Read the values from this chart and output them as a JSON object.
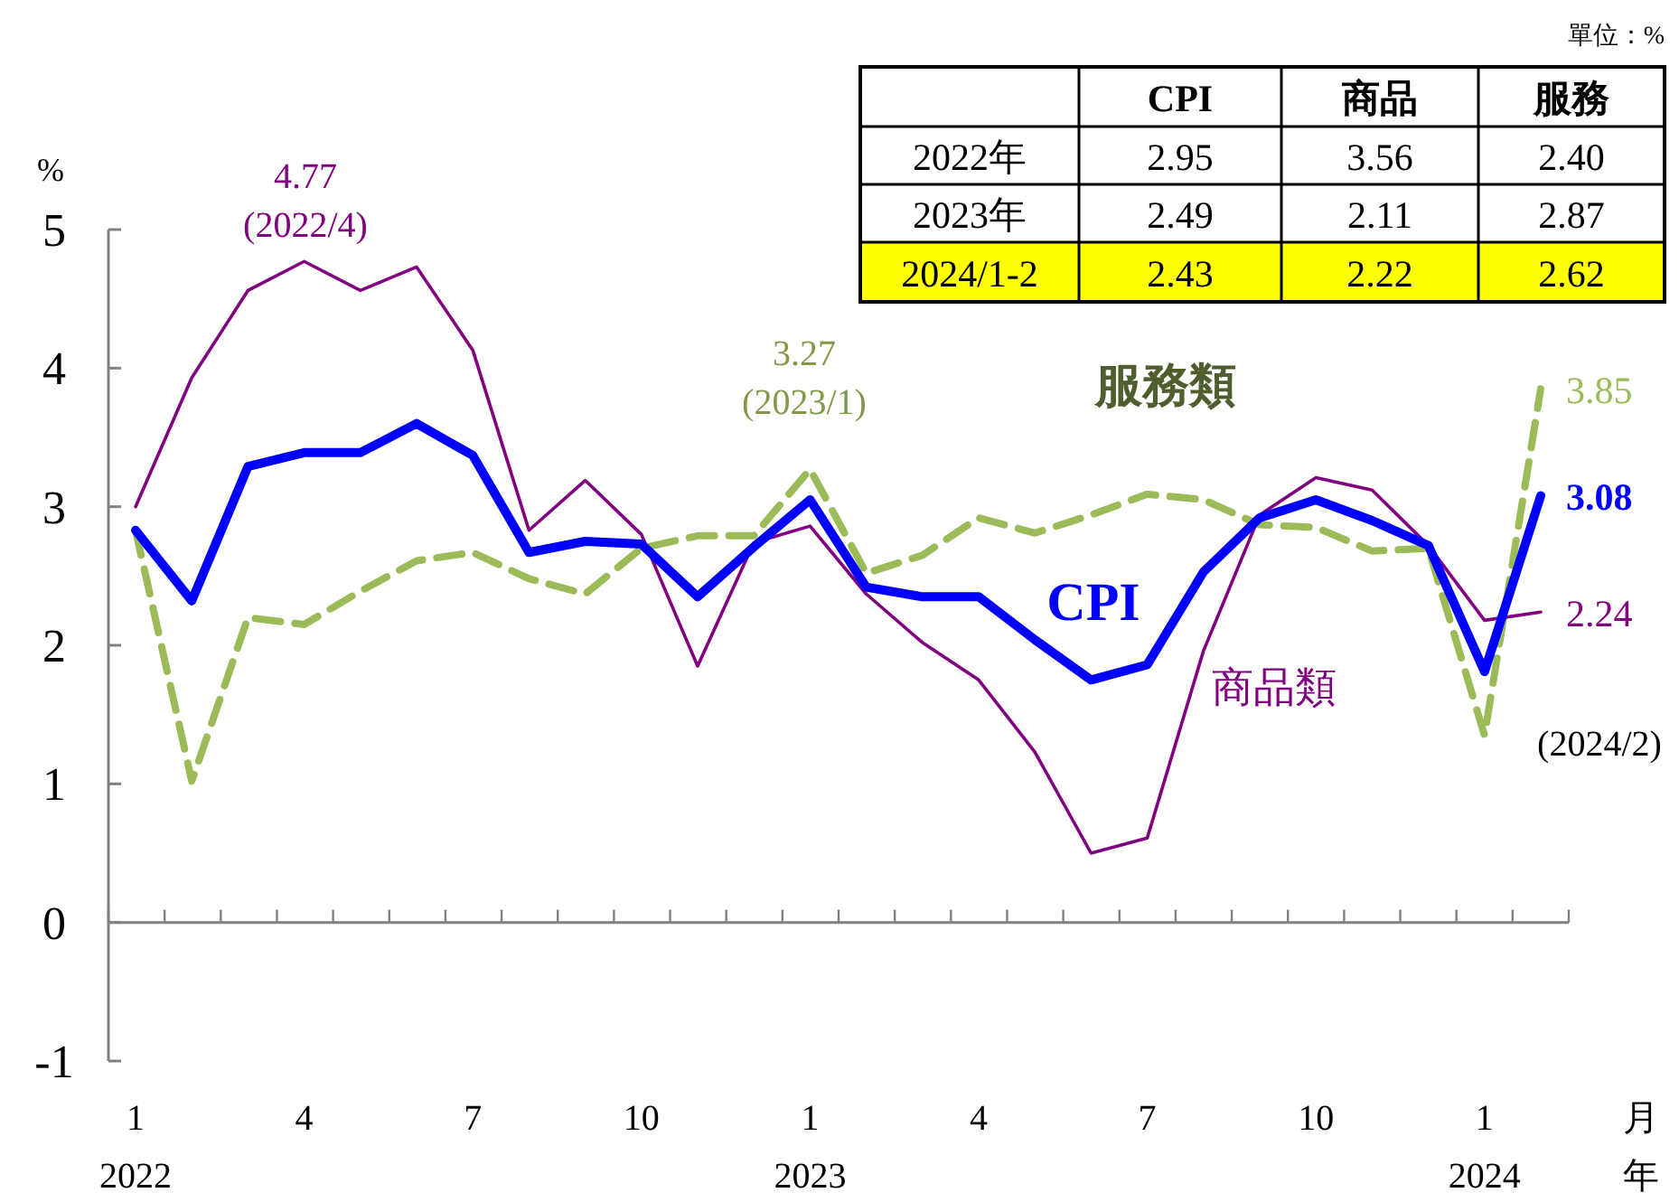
{
  "chart_data": [
    {
      "type": "line",
      "categories": [
        "1\n2022",
        null,
        null,
        "4",
        null,
        null,
        "7",
        null,
        null,
        "10",
        null,
        null,
        "1\n2023",
        null,
        null,
        "4",
        null,
        null,
        "7",
        null,
        null,
        "10",
        null,
        null,
        "1\n2024",
        null
      ],
      "xlabel": "月年",
      "ylabel": "%",
      "ylim": [
        -1,
        5
      ],
      "yticks": [
        -1,
        0,
        1,
        2,
        3,
        4,
        5
      ],
      "series": [
        {
          "name": "服務類",
          "color": "#9bbb59",
          "line_style": "dashed",
          "values": [
            2.83,
            1.02,
            2.2,
            2.15,
            2.39,
            2.61,
            2.67,
            2.48,
            2.37,
            2.7,
            2.79,
            2.79,
            3.27,
            2.52,
            2.65,
            2.92,
            2.81,
            2.94,
            3.09,
            3.05,
            2.87,
            2.85,
            2.68,
            2.7,
            1.35,
            3.85
          ],
          "value_labels": [
            null,
            null,
            null,
            null,
            null,
            null,
            null,
            null,
            null,
            null,
            null,
            null,
            null,
            null,
            null,
            null,
            null,
            null,
            null,
            null,
            null,
            null,
            null,
            null,
            null,
            "3.85"
          ]
        },
        {
          "name": "商品類",
          "color": "#800080",
          "line_style": "solid",
          "values": [
            3.0,
            3.93,
            4.56,
            4.77,
            4.56,
            4.73,
            4.13,
            2.83,
            3.19,
            2.8,
            1.85,
            2.74,
            2.86,
            2.37,
            2.02,
            1.75,
            1.23,
            0.5,
            0.61,
            1.96,
            2.94,
            3.21,
            3.12,
            2.72,
            2.18,
            2.24
          ],
          "value_labels": [
            null,
            null,
            null,
            null,
            null,
            null,
            null,
            null,
            null,
            null,
            null,
            null,
            null,
            null,
            null,
            null,
            null,
            null,
            null,
            null,
            null,
            null,
            null,
            null,
            null,
            "2.24"
          ]
        },
        {
          "name": "CPI",
          "color": "#0000ff",
          "line_style": "solid",
          "values": [
            2.83,
            2.32,
            3.29,
            3.39,
            3.39,
            3.6,
            3.37,
            2.67,
            2.75,
            2.73,
            2.35,
            2.71,
            3.05,
            2.42,
            2.35,
            2.35,
            2.04,
            1.75,
            1.86,
            2.53,
            2.92,
            3.05,
            2.9,
            2.72,
            1.81,
            3.08
          ],
          "value_labels": [
            null,
            null,
            null,
            null,
            null,
            null,
            null,
            null,
            null,
            null,
            null,
            null,
            null,
            null,
            null,
            null,
            null,
            null,
            null,
            null,
            null,
            null,
            null,
            null,
            null,
            "3.08"
          ]
        }
      ],
      "annotations": [
        "4.77\n(2022/4)",
        "3.27\n(2023/1)",
        "(2024/2)"
      ]
    },
    {
      "type": "other",
      "colors": [
        "#ffffff",
        "#ffffff",
        "#ffff00"
      ],
      "annotations": [
        "單位：%",
        "CPI",
        "商品",
        "服務",
        "2022年",
        "2.95",
        "3.56",
        "2.40",
        "2023年",
        "2.49",
        "2.11",
        "2.87",
        "2024/1-2",
        "2.43",
        "2.22",
        "2.62"
      ]
    }
  ]
}
